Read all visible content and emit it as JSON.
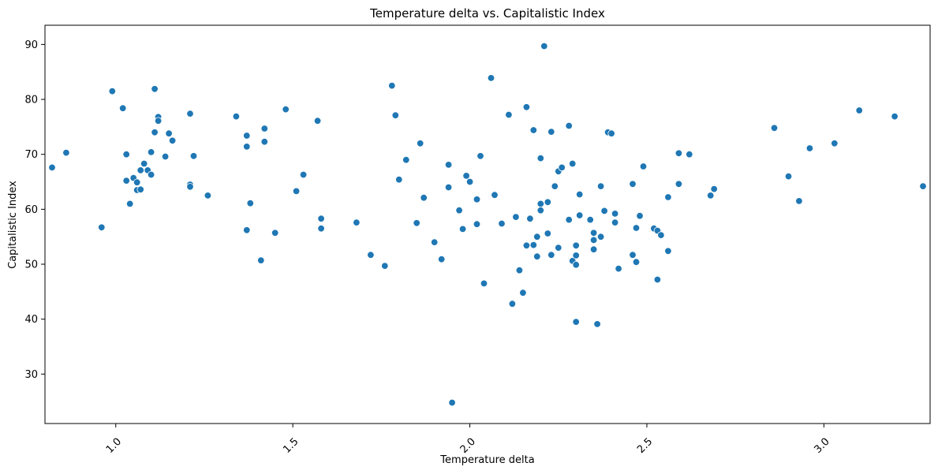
{
  "chart_data": {
    "type": "scatter",
    "title": "Temperature delta vs. Capitalistic Index",
    "xlabel": "Temperature delta",
    "ylabel": "Capitalistic Index",
    "xlim": [
      0.8,
      3.3
    ],
    "ylim": [
      21,
      93.5
    ],
    "xticks": [
      1.0,
      1.5,
      2.0,
      2.5,
      3.0
    ],
    "xtick_labels": [
      "1.0",
      "1.5",
      "2.0",
      "2.5",
      "3.0"
    ],
    "yticks": [
      30,
      40,
      50,
      60,
      70,
      80,
      90
    ],
    "ytick_labels": [
      "30",
      "40",
      "50",
      "60",
      "70",
      "80",
      "90"
    ],
    "grid": false,
    "marker_color": "#1f77b4",
    "points": [
      [
        0.82,
        67.6
      ],
      [
        0.86,
        70.3
      ],
      [
        0.96,
        56.7
      ],
      [
        0.99,
        81.5
      ],
      [
        1.02,
        78.4
      ],
      [
        1.03,
        65.2
      ],
      [
        1.03,
        70.0
      ],
      [
        1.04,
        61.0
      ],
      [
        1.05,
        65.7
      ],
      [
        1.06,
        63.5
      ],
      [
        1.06,
        64.9
      ],
      [
        1.07,
        67.1
      ],
      [
        1.07,
        63.6
      ],
      [
        1.08,
        68.3
      ],
      [
        1.09,
        67.1
      ],
      [
        1.1,
        70.4
      ],
      [
        1.1,
        66.3
      ],
      [
        1.11,
        81.9
      ],
      [
        1.11,
        74.0
      ],
      [
        1.12,
        76.8
      ],
      [
        1.12,
        76.1
      ],
      [
        1.14,
        69.6
      ],
      [
        1.15,
        73.8
      ],
      [
        1.16,
        72.5
      ],
      [
        1.21,
        64.5
      ],
      [
        1.21,
        64.1
      ],
      [
        1.21,
        77.4
      ],
      [
        1.22,
        69.7
      ],
      [
        1.26,
        62.5
      ],
      [
        1.34,
        76.9
      ],
      [
        1.37,
        71.4
      ],
      [
        1.37,
        73.4
      ],
      [
        1.37,
        56.2
      ],
      [
        1.38,
        61.1
      ],
      [
        1.41,
        50.7
      ],
      [
        1.42,
        74.7
      ],
      [
        1.42,
        72.3
      ],
      [
        1.45,
        55.7
      ],
      [
        1.48,
        78.2
      ],
      [
        1.51,
        63.3
      ],
      [
        1.53,
        66.3
      ],
      [
        1.57,
        76.1
      ],
      [
        1.58,
        58.3
      ],
      [
        1.58,
        56.5
      ],
      [
        1.68,
        57.6
      ],
      [
        1.72,
        51.7
      ],
      [
        1.76,
        49.7
      ],
      [
        1.78,
        82.5
      ],
      [
        1.79,
        77.1
      ],
      [
        1.8,
        65.4
      ],
      [
        1.82,
        69.0
      ],
      [
        1.85,
        57.5
      ],
      [
        1.86,
        72.0
      ],
      [
        1.87,
        62.1
      ],
      [
        1.9,
        54.0
      ],
      [
        1.92,
        50.9
      ],
      [
        1.94,
        68.1
      ],
      [
        1.94,
        64.0
      ],
      [
        1.95,
        24.8
      ],
      [
        1.97,
        59.8
      ],
      [
        1.98,
        56.4
      ],
      [
        1.99,
        66.1
      ],
      [
        2.0,
        65.0
      ],
      [
        2.02,
        57.3
      ],
      [
        2.02,
        61.8
      ],
      [
        2.03,
        69.7
      ],
      [
        2.04,
        46.5
      ],
      [
        2.06,
        83.9
      ],
      [
        2.07,
        62.6
      ],
      [
        2.09,
        57.4
      ],
      [
        2.11,
        77.2
      ],
      [
        2.12,
        42.8
      ],
      [
        2.13,
        58.6
      ],
      [
        2.14,
        48.9
      ],
      [
        2.15,
        44.8
      ],
      [
        2.16,
        78.6
      ],
      [
        2.16,
        53.4
      ],
      [
        2.17,
        58.3
      ],
      [
        2.18,
        74.4
      ],
      [
        2.18,
        53.5
      ],
      [
        2.19,
        51.4
      ],
      [
        2.19,
        55.0
      ],
      [
        2.2,
        61.0
      ],
      [
        2.2,
        59.8
      ],
      [
        2.2,
        69.3
      ],
      [
        2.21,
        89.7
      ],
      [
        2.22,
        61.3
      ],
      [
        2.22,
        55.6
      ],
      [
        2.23,
        51.7
      ],
      [
        2.23,
        74.1
      ],
      [
        2.24,
        64.2
      ],
      [
        2.25,
        66.9
      ],
      [
        2.25,
        53.0
      ],
      [
        2.26,
        67.6
      ],
      [
        2.28,
        75.2
      ],
      [
        2.28,
        58.1
      ],
      [
        2.29,
        68.3
      ],
      [
        2.29,
        50.6
      ],
      [
        2.3,
        53.4
      ],
      [
        2.3,
        49.9
      ],
      [
        2.3,
        39.5
      ],
      [
        2.3,
        51.6
      ],
      [
        2.31,
        62.7
      ],
      [
        2.31,
        58.9
      ],
      [
        2.34,
        58.1
      ],
      [
        2.35,
        54.4
      ],
      [
        2.35,
        52.7
      ],
      [
        2.35,
        55.7
      ],
      [
        2.36,
        39.1
      ],
      [
        2.37,
        64.2
      ],
      [
        2.37,
        55.0
      ],
      [
        2.38,
        59.7
      ],
      [
        2.39,
        74.0
      ],
      [
        2.4,
        73.8
      ],
      [
        2.41,
        57.6
      ],
      [
        2.41,
        59.2
      ],
      [
        2.42,
        49.2
      ],
      [
        2.46,
        64.6
      ],
      [
        2.46,
        51.7
      ],
      [
        2.47,
        56.6
      ],
      [
        2.47,
        50.4
      ],
      [
        2.48,
        58.8
      ],
      [
        2.49,
        67.8
      ],
      [
        2.52,
        56.5
      ],
      [
        2.53,
        47.2
      ],
      [
        2.53,
        56.1
      ],
      [
        2.54,
        55.3
      ],
      [
        2.56,
        62.2
      ],
      [
        2.56,
        52.4
      ],
      [
        2.59,
        64.6
      ],
      [
        2.59,
        70.2
      ],
      [
        2.62,
        70.0
      ],
      [
        2.68,
        62.5
      ],
      [
        2.69,
        63.7
      ],
      [
        2.86,
        74.8
      ],
      [
        2.9,
        66.0
      ],
      [
        2.93,
        61.5
      ],
      [
        2.96,
        71.1
      ],
      [
        3.03,
        72.0
      ],
      [
        3.1,
        78.0
      ],
      [
        3.2,
        76.9
      ],
      [
        3.28,
        64.2
      ]
    ]
  }
}
